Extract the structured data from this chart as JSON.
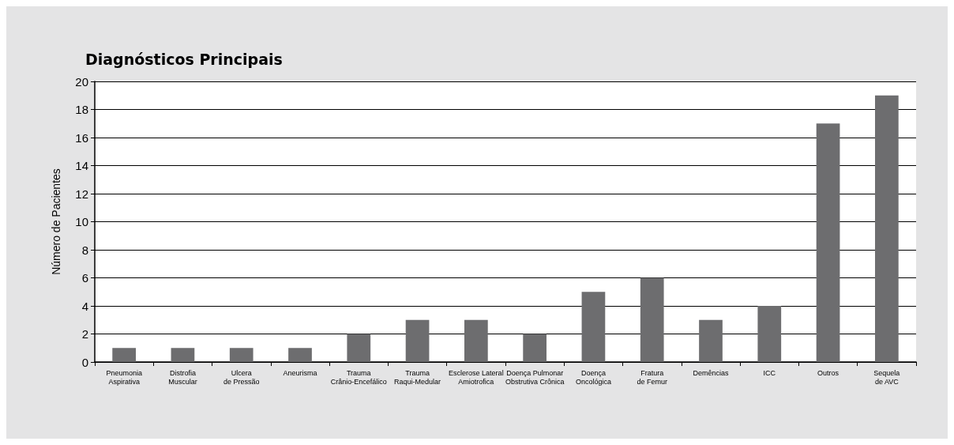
{
  "chart_data": {
    "type": "bar",
    "title": "Diagnósticos Principais",
    "ylabel": "Número de Pacientes",
    "categories": [
      "Pneumonia\nAspirativa",
      "Distrofia\nMuscular",
      "Ulcera\nde Pressão",
      "Aneurisma",
      "Trauma\nCrânio-Encefálico",
      "Trauma\nRaqui-Medular",
      "Esclerose Lateral\nAmiotrofica",
      "Doença Pulmonar\nObstrutiva Crônica",
      "Doença\nOncológica",
      "Fratura\nde Femur",
      "Demências",
      "ICC",
      "Outros",
      "Sequela\nde AVC"
    ],
    "values": [
      1,
      1,
      1,
      1,
      2,
      3,
      3,
      2,
      5,
      6,
      3,
      4,
      17,
      19
    ],
    "color": "#6d6d6f",
    "ylim": [
      0,
      20
    ],
    "yticks": [
      0,
      2,
      4,
      6,
      8,
      10,
      12,
      14,
      16,
      18,
      20
    ],
    "grid": "y"
  }
}
